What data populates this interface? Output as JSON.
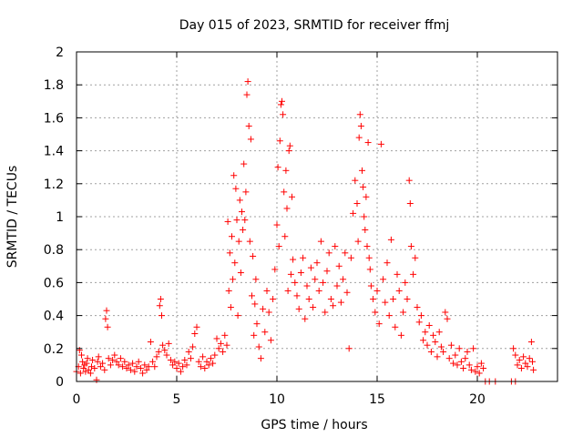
{
  "chart_data": {
    "type": "scatter",
    "title": "Day 015 of 2023, SRMTID for receiver ffmj",
    "xlabel": "GPS time / hours",
    "ylabel": "SRMTID / TECUs",
    "xlim": [
      0,
      24
    ],
    "ylim": [
      0,
      2
    ],
    "xticks": [
      0,
      5,
      10,
      15,
      20
    ],
    "yticks": [
      0,
      0.2,
      0.4,
      0.6,
      0.8,
      1,
      1.2,
      1.4,
      1.6,
      1.8,
      2
    ],
    "xtick_labels": [
      "0",
      "5",
      "10",
      "15",
      "20"
    ],
    "ytick_labels": [
      "0",
      "0.2",
      "0.4",
      "0.6",
      "0.8",
      "1",
      "1.2",
      "1.4",
      "1.6",
      "1.8",
      "2"
    ],
    "grid": true,
    "marker": "+",
    "marker_color": "#ff0000",
    "series": [
      {
        "name": "SRMTID",
        "points": [
          [
            0.0,
            0.06
          ],
          [
            0.1,
            0.09
          ],
          [
            0.15,
            0.19
          ],
          [
            0.2,
            0.05
          ],
          [
            0.25,
            0.16
          ],
          [
            0.3,
            0.12
          ],
          [
            0.35,
            0.08
          ],
          [
            0.4,
            0.1
          ],
          [
            0.45,
            0.06
          ],
          [
            0.5,
            0.11
          ],
          [
            0.55,
            0.14
          ],
          [
            0.6,
            0.07
          ],
          [
            0.7,
            0.05
          ],
          [
            0.75,
            0.09
          ],
          [
            0.8,
            0.13
          ],
          [
            0.9,
            0.08
          ],
          [
            1.0,
            0.01
          ],
          [
            1.05,
            0.12
          ],
          [
            1.1,
            0.15
          ],
          [
            1.2,
            0.09
          ],
          [
            1.3,
            0.11
          ],
          [
            1.4,
            0.07
          ],
          [
            1.45,
            0.38
          ],
          [
            1.5,
            0.43
          ],
          [
            1.55,
            0.33
          ],
          [
            1.6,
            0.14
          ],
          [
            1.7,
            0.1
          ],
          [
            1.8,
            0.13
          ],
          [
            1.9,
            0.16
          ],
          [
            2.0,
            0.12
          ],
          [
            2.1,
            0.1
          ],
          [
            2.2,
            0.14
          ],
          [
            2.3,
            0.09
          ],
          [
            2.4,
            0.12
          ],
          [
            2.5,
            0.08
          ],
          [
            2.6,
            0.1
          ],
          [
            2.7,
            0.07
          ],
          [
            2.8,
            0.11
          ],
          [
            2.9,
            0.06
          ],
          [
            3.0,
            0.09
          ],
          [
            3.1,
            0.12
          ],
          [
            3.2,
            0.08
          ],
          [
            3.3,
            0.05
          ],
          [
            3.4,
            0.1
          ],
          [
            3.5,
            0.07
          ],
          [
            3.6,
            0.09
          ],
          [
            3.7,
            0.24
          ],
          [
            3.8,
            0.12
          ],
          [
            3.9,
            0.09
          ],
          [
            4.0,
            0.15
          ],
          [
            4.1,
            0.18
          ],
          [
            4.15,
            0.46
          ],
          [
            4.2,
            0.5
          ],
          [
            4.25,
            0.4
          ],
          [
            4.3,
            0.22
          ],
          [
            4.4,
            0.19
          ],
          [
            4.5,
            0.16
          ],
          [
            4.6,
            0.23
          ],
          [
            4.7,
            0.13
          ],
          [
            4.8,
            0.1
          ],
          [
            4.9,
            0.12
          ],
          [
            5.0,
            0.08
          ],
          [
            5.1,
            0.11
          ],
          [
            5.2,
            0.06
          ],
          [
            5.3,
            0.09
          ],
          [
            5.4,
            0.13
          ],
          [
            5.5,
            0.1
          ],
          [
            5.6,
            0.18
          ],
          [
            5.7,
            0.14
          ],
          [
            5.8,
            0.21
          ],
          [
            5.9,
            0.29
          ],
          [
            6.0,
            0.33
          ],
          [
            6.1,
            0.12
          ],
          [
            6.2,
            0.09
          ],
          [
            6.3,
            0.15
          ],
          [
            6.4,
            0.08
          ],
          [
            6.5,
            0.12
          ],
          [
            6.6,
            0.1
          ],
          [
            6.7,
            0.14
          ],
          [
            6.8,
            0.11
          ],
          [
            6.9,
            0.16
          ],
          [
            7.0,
            0.26
          ],
          [
            7.1,
            0.2
          ],
          [
            7.2,
            0.23
          ],
          [
            7.3,
            0.18
          ],
          [
            7.4,
            0.28
          ],
          [
            7.5,
            0.22
          ],
          [
            7.55,
            0.97
          ],
          [
            7.6,
            0.55
          ],
          [
            7.65,
            0.78
          ],
          [
            7.7,
            0.45
          ],
          [
            7.75,
            0.88
          ],
          [
            7.8,
            0.62
          ],
          [
            7.85,
            1.25
          ],
          [
            7.9,
            0.72
          ],
          [
            7.95,
            1.17
          ],
          [
            8.0,
            0.98
          ],
          [
            8.05,
            0.4
          ],
          [
            8.1,
            0.85
          ],
          [
            8.15,
            1.1
          ],
          [
            8.2,
            0.66
          ],
          [
            8.25,
            1.03
          ],
          [
            8.3,
            0.92
          ],
          [
            8.35,
            1.32
          ],
          [
            8.4,
            0.98
          ],
          [
            8.45,
            1.15
          ],
          [
            8.5,
            1.74
          ],
          [
            8.55,
            1.82
          ],
          [
            8.6,
            1.55
          ],
          [
            8.65,
            0.85
          ],
          [
            8.7,
            1.47
          ],
          [
            8.75,
            0.52
          ],
          [
            8.8,
            0.76
          ],
          [
            8.85,
            0.28
          ],
          [
            8.9,
            0.47
          ],
          [
            8.95,
            0.62
          ],
          [
            9.0,
            0.35
          ],
          [
            9.1,
            0.21
          ],
          [
            9.2,
            0.14
          ],
          [
            9.3,
            0.44
          ],
          [
            9.4,
            0.3
          ],
          [
            9.5,
            0.55
          ],
          [
            9.6,
            0.42
          ],
          [
            9.7,
            0.25
          ],
          [
            9.8,
            0.5
          ],
          [
            9.9,
            0.68
          ],
          [
            10.0,
            0.95
          ],
          [
            10.05,
            1.3
          ],
          [
            10.1,
            0.82
          ],
          [
            10.15,
            1.46
          ],
          [
            10.2,
            1.68
          ],
          [
            10.25,
            1.7
          ],
          [
            10.3,
            1.62
          ],
          [
            10.35,
            1.15
          ],
          [
            10.4,
            0.88
          ],
          [
            10.45,
            1.28
          ],
          [
            10.5,
            1.05
          ],
          [
            10.55,
            0.55
          ],
          [
            10.6,
            1.4
          ],
          [
            10.65,
            1.43
          ],
          [
            10.7,
            0.65
          ],
          [
            10.75,
            1.12
          ],
          [
            10.8,
            0.74
          ],
          [
            10.9,
            0.6
          ],
          [
            11.0,
            0.52
          ],
          [
            11.1,
            0.44
          ],
          [
            11.2,
            0.66
          ],
          [
            11.3,
            0.75
          ],
          [
            11.4,
            0.38
          ],
          [
            11.5,
            0.58
          ],
          [
            11.6,
            0.5
          ],
          [
            11.7,
            0.69
          ],
          [
            11.8,
            0.45
          ],
          [
            11.9,
            0.62
          ],
          [
            12.0,
            0.72
          ],
          [
            12.1,
            0.55
          ],
          [
            12.2,
            0.85
          ],
          [
            12.3,
            0.6
          ],
          [
            12.4,
            0.42
          ],
          [
            12.5,
            0.67
          ],
          [
            12.6,
            0.78
          ],
          [
            12.7,
            0.5
          ],
          [
            12.8,
            0.46
          ],
          [
            12.9,
            0.82
          ],
          [
            13.0,
            0.58
          ],
          [
            13.1,
            0.7
          ],
          [
            13.2,
            0.48
          ],
          [
            13.3,
            0.62
          ],
          [
            13.4,
            0.78
          ],
          [
            13.5,
            0.54
          ],
          [
            13.6,
            0.2
          ],
          [
            13.7,
            0.75
          ],
          [
            13.8,
            1.02
          ],
          [
            13.9,
            1.22
          ],
          [
            14.0,
            1.08
          ],
          [
            14.05,
            0.85
          ],
          [
            14.1,
            1.48
          ],
          [
            14.15,
            1.62
          ],
          [
            14.2,
            1.55
          ],
          [
            14.25,
            1.28
          ],
          [
            14.3,
            1.18
          ],
          [
            14.35,
            1.0
          ],
          [
            14.4,
            0.92
          ],
          [
            14.45,
            1.12
          ],
          [
            14.5,
            0.82
          ],
          [
            14.55,
            1.45
          ],
          [
            14.6,
            0.75
          ],
          [
            14.65,
            0.68
          ],
          [
            14.7,
            0.58
          ],
          [
            14.8,
            0.5
          ],
          [
            14.9,
            0.42
          ],
          [
            15.0,
            0.55
          ],
          [
            15.1,
            0.35
          ],
          [
            15.2,
            1.44
          ],
          [
            15.3,
            0.62
          ],
          [
            15.4,
            0.48
          ],
          [
            15.5,
            0.72
          ],
          [
            15.6,
            0.4
          ],
          [
            15.7,
            0.86
          ],
          [
            15.8,
            0.5
          ],
          [
            15.9,
            0.33
          ],
          [
            16.0,
            0.65
          ],
          [
            16.1,
            0.55
          ],
          [
            16.2,
            0.28
          ],
          [
            16.3,
            0.42
          ],
          [
            16.4,
            0.6
          ],
          [
            16.5,
            0.5
          ],
          [
            16.6,
            1.22
          ],
          [
            16.65,
            1.08
          ],
          [
            16.7,
            0.82
          ],
          [
            16.8,
            0.65
          ],
          [
            16.9,
            0.75
          ],
          [
            17.0,
            0.45
          ],
          [
            17.1,
            0.36
          ],
          [
            17.2,
            0.4
          ],
          [
            17.3,
            0.25
          ],
          [
            17.4,
            0.3
          ],
          [
            17.5,
            0.22
          ],
          [
            17.6,
            0.34
          ],
          [
            17.7,
            0.18
          ],
          [
            17.8,
            0.28
          ],
          [
            17.9,
            0.24
          ],
          [
            18.0,
            0.15
          ],
          [
            18.1,
            0.3
          ],
          [
            18.2,
            0.21
          ],
          [
            18.3,
            0.18
          ],
          [
            18.4,
            0.42
          ],
          [
            18.5,
            0.38
          ],
          [
            18.6,
            0.14
          ],
          [
            18.7,
            0.22
          ],
          [
            18.8,
            0.11
          ],
          [
            18.9,
            0.16
          ],
          [
            19.0,
            0.1
          ],
          [
            19.1,
            0.2
          ],
          [
            19.2,
            0.12
          ],
          [
            19.3,
            0.08
          ],
          [
            19.4,
            0.14
          ],
          [
            19.5,
            0.18
          ],
          [
            19.6,
            0.1
          ],
          [
            19.7,
            0.07
          ],
          [
            19.8,
            0.2
          ],
          [
            19.9,
            0.06
          ],
          [
            20.0,
            0.09
          ],
          [
            20.1,
            0.05
          ],
          [
            20.2,
            0.11
          ],
          [
            20.3,
            0.08
          ],
          [
            20.4,
            0.0
          ],
          [
            20.6,
            0.0
          ],
          [
            20.9,
            0.0
          ],
          [
            21.7,
            0.0
          ],
          [
            21.9,
            0.0
          ],
          [
            21.8,
            0.2
          ],
          [
            21.9,
            0.16
          ],
          [
            22.0,
            0.1
          ],
          [
            22.1,
            0.13
          ],
          [
            22.2,
            0.08
          ],
          [
            22.3,
            0.15
          ],
          [
            22.4,
            0.11
          ],
          [
            22.5,
            0.09
          ],
          [
            22.6,
            0.14
          ],
          [
            22.7,
            0.24
          ],
          [
            22.75,
            0.12
          ],
          [
            22.8,
            0.07
          ]
        ]
      }
    ]
  }
}
